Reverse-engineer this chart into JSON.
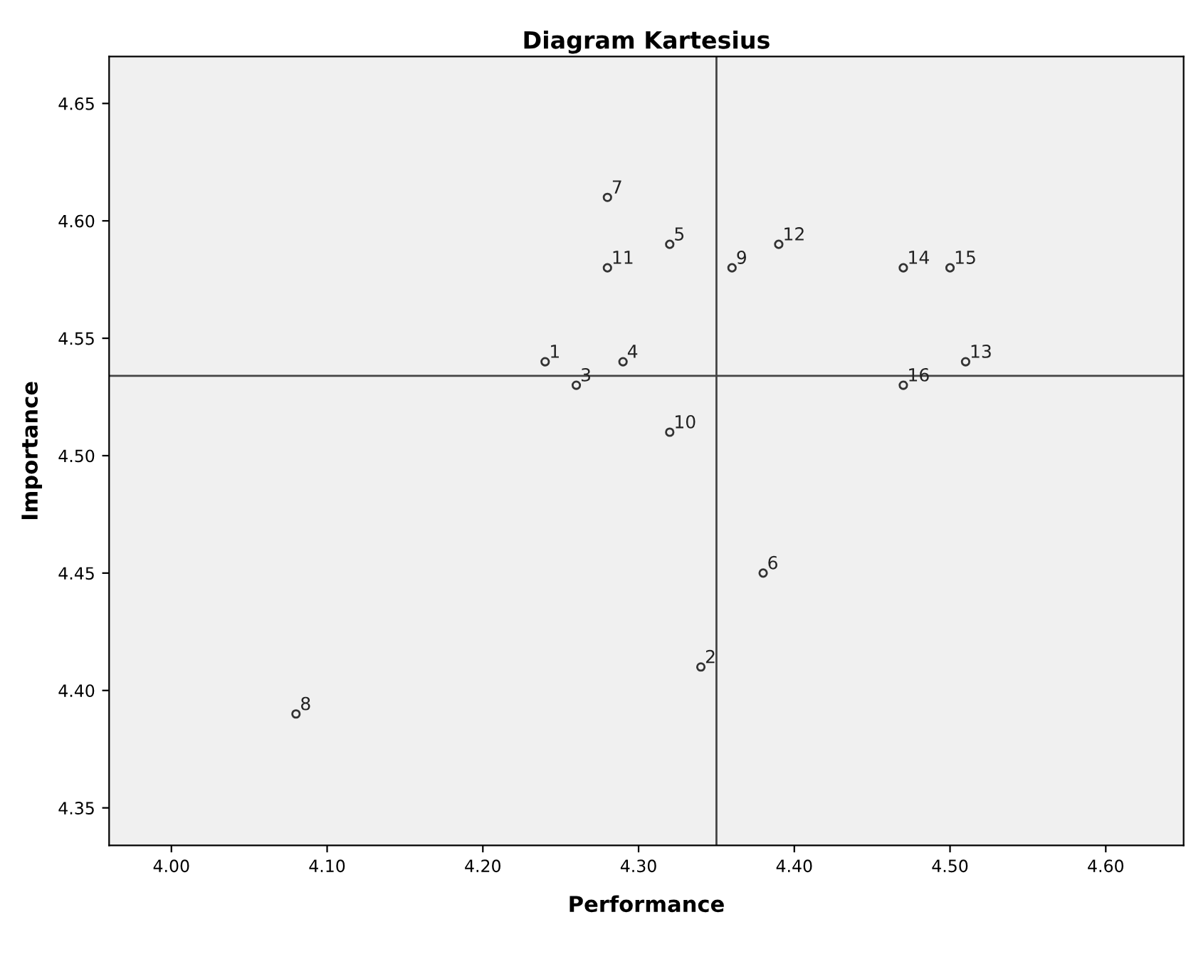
{
  "chart_data": {
    "type": "scatter",
    "title": "Diagram Kartesius",
    "xlabel": "Performance",
    "ylabel": "Importance",
    "x": [
      4.24,
      4.34,
      4.26,
      4.29,
      4.32,
      4.38,
      4.28,
      4.08,
      4.36,
      4.32,
      4.28,
      4.39,
      4.51,
      4.47,
      4.5,
      4.47
    ],
    "series": [
      {
        "color": "#333333",
        "values": [
          4.54,
          4.41,
          4.53,
          4.54,
          4.59,
          4.45,
          4.61,
          4.39,
          4.58,
          4.51,
          4.58,
          4.59,
          4.54,
          4.58,
          4.58,
          4.53
        ]
      }
    ],
    "annotations": [
      {
        "text": "1",
        "x": 4.24,
        "y": 4.54
      },
      {
        "text": "2",
        "x": 4.34,
        "y": 4.41
      },
      {
        "text": "3",
        "x": 4.26,
        "y": 4.53
      },
      {
        "text": "4",
        "x": 4.29,
        "y": 4.54
      },
      {
        "text": "5",
        "x": 4.32,
        "y": 4.59
      },
      {
        "text": "6",
        "x": 4.38,
        "y": 4.45
      },
      {
        "text": "7",
        "x": 4.28,
        "y": 4.61
      },
      {
        "text": "8",
        "x": 4.08,
        "y": 4.39
      },
      {
        "text": "9",
        "x": 4.36,
        "y": 4.58
      },
      {
        "text": "10",
        "x": 4.32,
        "y": 4.51
      },
      {
        "text": "11",
        "x": 4.28,
        "y": 4.58
      },
      {
        "text": "12",
        "x": 4.39,
        "y": 4.59
      },
      {
        "text": "13",
        "x": 4.51,
        "y": 4.54
      },
      {
        "text": "14",
        "x": 4.47,
        "y": 4.58
      },
      {
        "text": "15",
        "x": 4.5,
        "y": 4.58
      },
      {
        "text": "16",
        "x": 4.47,
        "y": 4.53
      }
    ],
    "ref_lines": [
      {
        "axis": "x",
        "value": 4.35,
        "color": "#444444"
      },
      {
        "axis": "y",
        "value": 4.534,
        "color": "#444444"
      }
    ],
    "xlim": [
      3.96,
      4.65
    ],
    "ylim": [
      4.334,
      4.67
    ],
    "xticks": [
      {
        "value": 4.0,
        "label": "4.00"
      },
      {
        "value": 4.1,
        "label": "4.10"
      },
      {
        "value": 4.2,
        "label": "4.20"
      },
      {
        "value": 4.3,
        "label": "4.30"
      },
      {
        "value": 4.4,
        "label": "4.40"
      },
      {
        "value": 4.5,
        "label": "4.50"
      },
      {
        "value": 4.6,
        "label": "4.60"
      }
    ],
    "yticks": [
      {
        "value": 4.35,
        "label": "4.35"
      },
      {
        "value": 4.4,
        "label": "4.40"
      },
      {
        "value": 4.45,
        "label": "4.45"
      },
      {
        "value": 4.5,
        "label": "4.50"
      },
      {
        "value": 4.55,
        "label": "4.55"
      },
      {
        "value": 4.6,
        "label": "4.60"
      },
      {
        "value": 4.65,
        "label": "4.65"
      }
    ],
    "marker": "circle",
    "grid": false,
    "legend": false
  }
}
